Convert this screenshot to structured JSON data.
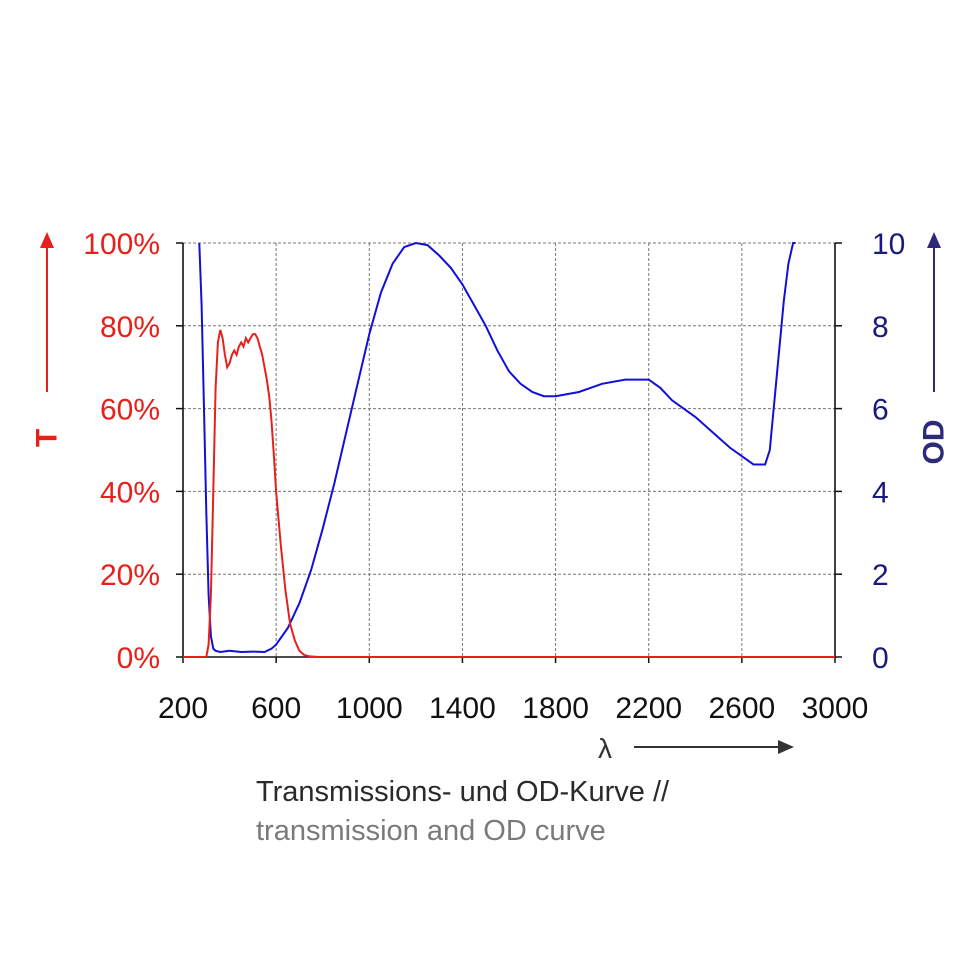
{
  "caption": {
    "line1": "Transmissions- und OD-Kurve //",
    "line2": "transmission and OD curve"
  },
  "chart_data": {
    "type": "line",
    "title": "",
    "xlabel": "λ",
    "ylabel_left": "T",
    "ylabel_right": "OD",
    "xlim": [
      200,
      3000
    ],
    "ylim_left": [
      0,
      100
    ],
    "ylim_right": [
      0,
      10
    ],
    "x_ticks": [
      "200",
      "600",
      "1000",
      "1400",
      "1800",
      "2200",
      "2600",
      "3000"
    ],
    "y_left_ticks": [
      "0%",
      "20%",
      "40%",
      "60%",
      "80%",
      "100%"
    ],
    "y_right_ticks": [
      "0",
      "2",
      "4",
      "6",
      "8",
      "10"
    ],
    "grid": true,
    "colors": {
      "T": "#e8201c",
      "OD": "#1010d8",
      "left_axis": "#e8201c",
      "right_axis": "#2e2a7a",
      "grid": "#777777"
    },
    "series": [
      {
        "axis": "left",
        "x": [
          200,
          300,
          310,
          320,
          330,
          340,
          350,
          360,
          370,
          380,
          390,
          400,
          410,
          420,
          430,
          440,
          450,
          460,
          470,
          480,
          490,
          500,
          510,
          520,
          530,
          540,
          550,
          560,
          570,
          580,
          590,
          600,
          620,
          640,
          660,
          680,
          700,
          720,
          740,
          760,
          780,
          800,
          1000,
          3000
        ],
        "values": [
          0,
          0,
          3,
          15,
          40,
          65,
          76,
          79,
          77,
          73,
          70,
          71,
          73,
          74,
          73,
          75,
          76,
          75,
          77,
          76,
          77,
          78,
          78,
          77,
          75,
          73,
          70,
          67,
          63,
          57,
          49,
          40,
          27,
          16,
          8,
          4,
          1.5,
          0.5,
          0.2,
          0.1,
          0,
          0,
          0,
          0
        ]
      },
      {
        "axis": "right",
        "x": [
          270,
          280,
          290,
          300,
          310,
          320,
          330,
          340,
          360,
          400,
          450,
          500,
          550,
          580,
          600,
          650,
          700,
          750,
          800,
          850,
          900,
          950,
          1000,
          1050,
          1100,
          1150,
          1200,
          1250,
          1300,
          1350,
          1400,
          1450,
          1500,
          1550,
          1600,
          1650,
          1700,
          1750,
          1800,
          1850,
          1900,
          2000,
          2100,
          2200,
          2250,
          2300,
          2400,
          2500,
          2550,
          2600,
          2650,
          2700,
          2720,
          2750,
          2780,
          2800,
          2820,
          2830
        ],
        "values": [
          10,
          8.5,
          6,
          3.5,
          1.5,
          0.5,
          0.2,
          0.15,
          0.12,
          0.15,
          0.12,
          0.13,
          0.12,
          0.2,
          0.3,
          0.7,
          1.3,
          2.1,
          3.1,
          4.2,
          5.4,
          6.6,
          7.8,
          8.8,
          9.5,
          9.9,
          10,
          9.95,
          9.7,
          9.4,
          9.0,
          8.5,
          8.0,
          7.4,
          6.9,
          6.6,
          6.4,
          6.3,
          6.3,
          6.35,
          6.4,
          6.6,
          6.7,
          6.7,
          6.5,
          6.2,
          5.8,
          5.3,
          5.05,
          4.85,
          4.65,
          4.65,
          5.0,
          6.8,
          8.6,
          9.5,
          10.0,
          10.0
        ]
      }
    ]
  }
}
